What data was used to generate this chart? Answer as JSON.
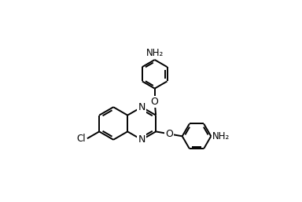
{
  "bg_color": "#ffffff",
  "line_color": "#000000",
  "line_width": 1.4,
  "font_size": 8.5,
  "figsize": [
    3.84,
    2.57
  ],
  "dpi": 100,
  "xlim": [
    -2.0,
    2.8
  ],
  "ylim": [
    -1.6,
    2.4
  ]
}
